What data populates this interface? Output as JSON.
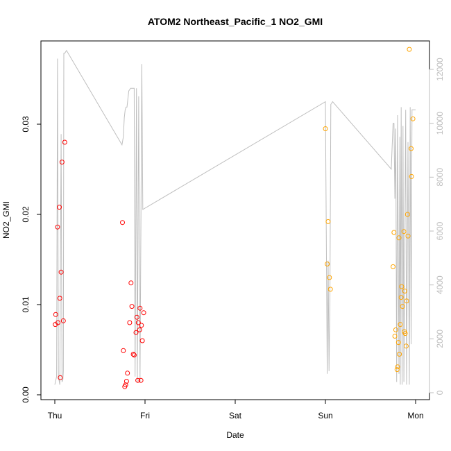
{
  "chart_data": {
    "type": "scatter",
    "title": "ATOM2 Northeast_Pacific_1 NO2_GMI",
    "xlabel": "Date",
    "ylabel": "NO2_GMI",
    "x_ticks": [
      "Thu",
      "Fri",
      "Sat",
      "Sun",
      "Mon"
    ],
    "xlim_days": [
      -0.2,
      4.05
    ],
    "ylim": [
      -0.0005,
      0.0395
    ],
    "y_ticks": [
      "0.00",
      "0.01",
      "0.02",
      "0.03"
    ],
    "y2_ticks": [
      "0",
      "2000",
      "4000",
      "6000",
      "8000",
      "10000",
      "12000"
    ],
    "y2lim": [
      -200,
      13000
    ],
    "colors": {
      "series1": "#ff0000",
      "series2": "#ffa500",
      "altitude": "#bebebe"
    },
    "series": [
      {
        "color": "#ff0000",
        "points": [
          [
            0.005,
            0.0078
          ],
          [
            0.01,
            0.0089
          ],
          [
            0.03,
            0.0186
          ],
          [
            0.035,
            0.008
          ],
          [
            0.05,
            0.0208
          ],
          [
            0.055,
            0.0107
          ],
          [
            0.06,
            0.0019
          ],
          [
            0.07,
            0.0136
          ],
          [
            0.08,
            0.0258
          ],
          [
            0.095,
            0.0082
          ],
          [
            0.11,
            0.028
          ],
          [
            0.75,
            0.0191
          ],
          [
            0.76,
            0.0049
          ],
          [
            0.775,
            0.0009
          ],
          [
            0.785,
            0.0011
          ],
          [
            0.795,
            0.0015
          ],
          [
            0.805,
            0.0024
          ],
          [
            0.83,
            0.008
          ],
          [
            0.845,
            0.0124
          ],
          [
            0.855,
            0.0098
          ],
          [
            0.87,
            0.0045
          ],
          [
            0.88,
            0.0044
          ],
          [
            0.9,
            0.0069
          ],
          [
            0.91,
            0.0086
          ],
          [
            0.92,
            0.0016
          ],
          [
            0.925,
            0.008
          ],
          [
            0.94,
            0.0072
          ],
          [
            0.945,
            0.0096
          ],
          [
            0.955,
            0.0016
          ],
          [
            0.96,
            0.0077
          ],
          [
            0.97,
            0.006
          ],
          [
            0.985,
            0.0091
          ]
        ]
      },
      {
        "color": "#ffa500",
        "points": [
          [
            3.0,
            0.0295
          ],
          [
            3.02,
            0.0145
          ],
          [
            3.03,
            0.0192
          ],
          [
            3.045,
            0.013
          ],
          [
            3.055,
            0.0117
          ],
          [
            3.75,
            0.0142
          ],
          [
            3.76,
            0.018
          ],
          [
            3.77,
            0.0065
          ],
          [
            3.78,
            0.0072
          ],
          [
            3.795,
            0.0028
          ],
          [
            3.8,
            0.0031
          ],
          [
            3.81,
            0.0058
          ],
          [
            3.815,
            0.0174
          ],
          [
            3.82,
            0.0045
          ],
          [
            3.83,
            0.0078
          ],
          [
            3.84,
            0.0108
          ],
          [
            3.845,
            0.012
          ],
          [
            3.855,
            0.0098
          ],
          [
            3.87,
            0.0181
          ],
          [
            3.875,
            0.007
          ],
          [
            3.88,
            0.0115
          ],
          [
            3.885,
            0.0068
          ],
          [
            3.895,
            0.0054
          ],
          [
            3.9,
            0.0104
          ],
          [
            3.91,
            0.02
          ],
          [
            3.915,
            0.0176
          ],
          [
            3.93,
            0.0383
          ],
          [
            3.95,
            0.0273
          ],
          [
            3.955,
            0.0242
          ],
          [
            3.97,
            0.0306
          ]
        ]
      }
    ],
    "altitude_series": {
      "color": "#bebebe",
      "axis": "right",
      "points": [
        [
          0.0,
          300
        ],
        [
          0.02,
          600
        ],
        [
          0.03,
          12400
        ],
        [
          0.04,
          600
        ],
        [
          0.055,
          300
        ],
        [
          0.07,
          9600
        ],
        [
          0.08,
          400
        ],
        [
          0.09,
          500
        ],
        [
          0.1,
          12600
        ],
        [
          0.745,
          9200
        ],
        [
          0.76,
          9500
        ],
        [
          0.77,
          10200
        ],
        [
          0.78,
          10500
        ],
        [
          0.79,
          10600
        ],
        [
          0.8,
          10600
        ],
        [
          0.82,
          11200
        ],
        [
          0.84,
          11300
        ],
        [
          0.86,
          11300
        ],
        [
          0.88,
          11300
        ],
        [
          0.89,
          600
        ],
        [
          0.905,
          11300
        ],
        [
          0.915,
          400
        ],
        [
          0.93,
          11000
        ],
        [
          0.945,
          400
        ],
        [
          0.965,
          12200
        ],
        [
          0.975,
          6800
        ],
        [
          0.095,
          800
        ],
        [
          0.11,
          12600
        ],
        [
          0.13,
          12700
        ],
        [
          3.0,
          10800
        ],
        [
          3.02,
          700
        ],
        [
          3.03,
          4900
        ],
        [
          3.04,
          800
        ],
        [
          3.05,
          3500
        ],
        [
          3.06,
          10700
        ],
        [
          3.08,
          10800
        ],
        [
          3.73,
          8300
        ],
        [
          3.75,
          10000
        ],
        [
          3.76,
          10000
        ],
        [
          3.77,
          7200
        ],
        [
          3.78,
          9800
        ],
        [
          3.79,
          400
        ],
        [
          3.8,
          10300
        ],
        [
          3.815,
          700
        ],
        [
          3.825,
          9500
        ],
        [
          3.83,
          300
        ],
        [
          3.84,
          10600
        ],
        [
          3.85,
          300
        ],
        [
          3.86,
          9900
        ],
        [
          3.87,
          400
        ],
        [
          3.89,
          10500
        ],
        [
          3.9,
          300
        ],
        [
          3.915,
          9300
        ],
        [
          3.93,
          300
        ],
        [
          3.94,
          10600
        ],
        [
          3.95,
          1800
        ],
        [
          3.96,
          10500
        ],
        [
          4.0,
          10500
        ]
      ]
    },
    "grid": false,
    "legend": "none"
  }
}
